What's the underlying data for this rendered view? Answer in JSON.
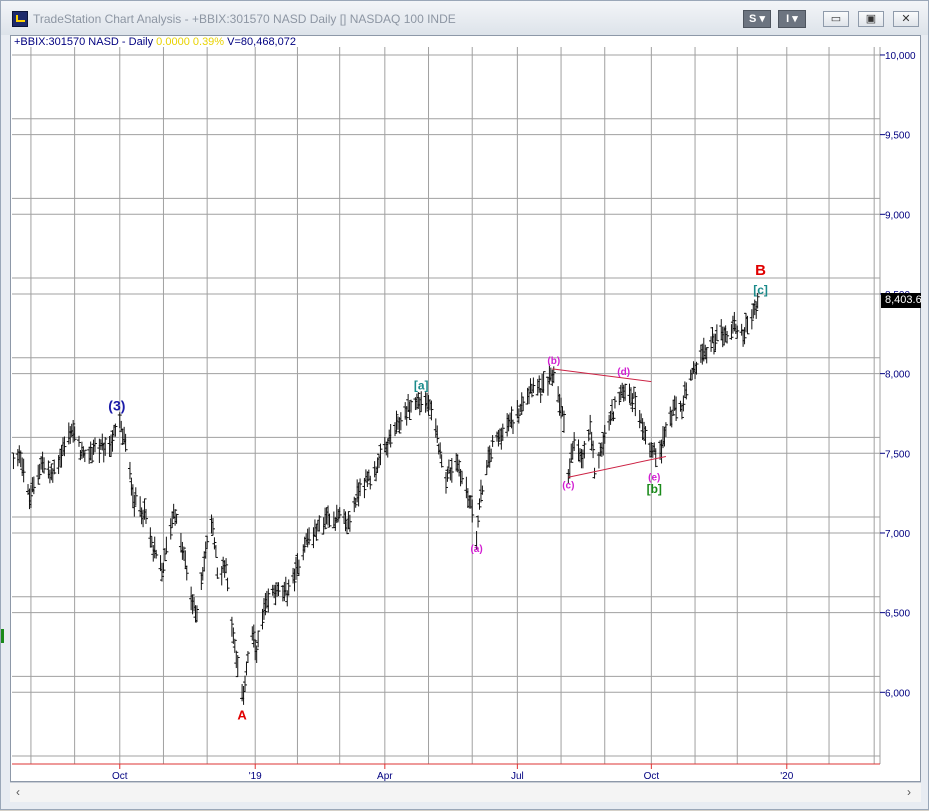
{
  "window": {
    "title": "TradeStation Chart Analysis - +BBIX:301570 NASD Daily [] NASDAQ 100 INDE",
    "buttons": {
      "s_label": "S",
      "i_label": "I",
      "s_menu_glyph": "▾",
      "i_menu_glyph": "▾"
    },
    "controls": {
      "minimize_glyph": "▭",
      "restore_glyph": "▣",
      "close_glyph": "✕"
    }
  },
  "status_line": {
    "symbol": "+BBIX:301570 NASD - Daily",
    "change": "0.0000",
    "pct_change": "0.39%",
    "volume": "V=80,468,072"
  },
  "last_price_label": "8,403.6",
  "scroll": {
    "left_glyph": "‹",
    "right_glyph": "›"
  },
  "colors": {
    "grid": "#a0a0a0",
    "bars": "#111111",
    "axis_text": "#000080",
    "wave_red": "#e00000",
    "wave_blue": "#1a1aa8",
    "wave_teal": "#1a8a8a",
    "wave_magenta": "#d21ed2",
    "wave_green": "#1a8a1a",
    "trendline": "#cc2244"
  },
  "chart_data": {
    "type": "ohlc",
    "ylim": [
      5550,
      10050
    ],
    "y_ticks": [
      6000,
      6500,
      7000,
      7500,
      8000,
      8500,
      9000,
      9500,
      10000
    ],
    "y_tick_labels": [
      "6,000",
      "6,500",
      "7,000",
      "7,500",
      "8,000",
      "8,500",
      "9,000",
      "9,500",
      "10,000"
    ],
    "xlim": [
      "2018-07-19",
      "2020-03-06"
    ],
    "x_ticks": [
      {
        "date": "2018-10-01",
        "label": "Oct"
      },
      {
        "date": "2019-01-02",
        "label": "'19"
      },
      {
        "date": "2019-04-01",
        "label": "Apr"
      },
      {
        "date": "2019-07-01",
        "label": "Jul"
      },
      {
        "date": "2019-10-01",
        "label": "Oct"
      },
      {
        "date": "2020-01-02",
        "label": "'20"
      }
    ],
    "x_grid_dates": [
      "2018-08-01",
      "2018-08-31",
      "2018-10-01",
      "2018-10-31",
      "2018-11-30",
      "2019-01-02",
      "2019-01-31",
      "2019-03-01",
      "2019-04-01",
      "2019-05-01",
      "2019-05-31",
      "2019-07-01",
      "2019-07-31",
      "2019-08-30",
      "2019-10-01",
      "2019-10-31",
      "2019-11-29",
      "2020-01-02",
      "2020-01-31",
      "2020-03-02"
    ],
    "price_path": [
      [
        "2018-07-20",
        7450
      ],
      [
        "2018-07-25",
        7500
      ],
      [
        "2018-07-31",
        7200
      ],
      [
        "2018-08-08",
        7450
      ],
      [
        "2018-08-15",
        7350
      ],
      [
        "2018-08-22",
        7500
      ],
      [
        "2018-08-29",
        7650
      ],
      [
        "2018-09-07",
        7450
      ],
      [
        "2018-09-14",
        7550
      ],
      [
        "2018-09-21",
        7500
      ],
      [
        "2018-10-01",
        7680
      ],
      [
        "2018-10-05",
        7550
      ],
      [
        "2018-10-11",
        7200
      ],
      [
        "2018-10-17",
        7150
      ],
      [
        "2018-10-24",
        6900
      ],
      [
        "2018-10-30",
        6750
      ],
      [
        "2018-11-07",
        7150
      ],
      [
        "2018-11-14",
        6850
      ],
      [
        "2018-11-20",
        6550
      ],
      [
        "2018-11-23",
        6500
      ],
      [
        "2018-11-30",
        6950
      ],
      [
        "2018-12-04",
        7050
      ],
      [
        "2018-12-07",
        6750
      ],
      [
        "2018-12-13",
        6800
      ],
      [
        "2018-12-18",
        6350
      ],
      [
        "2018-12-24",
        5950
      ],
      [
        "2018-12-27",
        6150
      ],
      [
        "2018-12-31",
        6350
      ],
      [
        "2019-01-03",
        6250
      ],
      [
        "2019-01-08",
        6500
      ],
      [
        "2019-01-15",
        6650
      ],
      [
        "2019-01-22",
        6600
      ],
      [
        "2019-01-30",
        6750
      ],
      [
        "2019-02-05",
        6950
      ],
      [
        "2019-02-12",
        7000
      ],
      [
        "2019-02-20",
        7100
      ],
      [
        "2019-02-28",
        7100
      ],
      [
        "2019-03-07",
        7050
      ],
      [
        "2019-03-15",
        7300
      ],
      [
        "2019-03-22",
        7350
      ],
      [
        "2019-03-29",
        7450
      ],
      [
        "2019-04-05",
        7600
      ],
      [
        "2019-04-12",
        7700
      ],
      [
        "2019-04-18",
        7800
      ],
      [
        "2019-04-26",
        7830
      ],
      [
        "2019-05-01",
        7800
      ],
      [
        "2019-05-07",
        7600
      ],
      [
        "2019-05-13",
        7350
      ],
      [
        "2019-05-20",
        7450
      ],
      [
        "2019-05-24",
        7350
      ],
      [
        "2019-05-31",
        7150
      ],
      [
        "2019-06-03",
        7000
      ],
      [
        "2019-06-07",
        7300
      ],
      [
        "2019-06-14",
        7550
      ],
      [
        "2019-06-21",
        7650
      ],
      [
        "2019-06-28",
        7700
      ],
      [
        "2019-07-05",
        7850
      ],
      [
        "2019-07-12",
        7950
      ],
      [
        "2019-07-18",
        7900
      ],
      [
        "2019-07-26",
        8000
      ],
      [
        "2019-08-02",
        7700
      ],
      [
        "2019-08-05",
        7400
      ],
      [
        "2019-08-09",
        7550
      ],
      [
        "2019-08-14",
        7450
      ],
      [
        "2019-08-20",
        7650
      ],
      [
        "2019-08-23",
        7400
      ],
      [
        "2019-08-30",
        7600
      ],
      [
        "2019-09-06",
        7800
      ],
      [
        "2019-09-12",
        7900
      ],
      [
        "2019-09-19",
        7850
      ],
      [
        "2019-09-24",
        7700
      ],
      [
        "2019-10-02",
        7500
      ],
      [
        "2019-10-08",
        7550
      ],
      [
        "2019-10-15",
        7750
      ],
      [
        "2019-10-22",
        7800
      ],
      [
        "2019-10-28",
        7950
      ],
      [
        "2019-11-01",
        8050
      ],
      [
        "2019-11-08",
        8150
      ],
      [
        "2019-11-15",
        8250
      ],
      [
        "2019-11-22",
        8250
      ],
      [
        "2019-11-27",
        8300
      ],
      [
        "2019-12-03",
        8250
      ],
      [
        "2019-12-10",
        8400
      ],
      [
        "2019-12-13",
        8420
      ]
    ],
    "wave_labels": [
      {
        "text": "(3)",
        "date": "2018-09-29",
        "price": 7770,
        "color": "#1a1aa8",
        "size": 14
      },
      {
        "text": "A",
        "date": "2018-12-24",
        "price": 5830,
        "color": "#e00000",
        "size": 13
      },
      {
        "text": "[a]",
        "date": "2019-04-26",
        "price": 7900,
        "color": "#1a8a8a",
        "size": 12
      },
      {
        "text": "(a)",
        "date": "2019-06-03",
        "price": 6880,
        "color": "#d21ed2",
        "size": 10
      },
      {
        "text": "(b)",
        "date": "2019-07-26",
        "price": 8060,
        "color": "#d21ed2",
        "size": 10
      },
      {
        "text": "(c)",
        "date": "2019-08-05",
        "price": 7280,
        "color": "#d21ed2",
        "size": 10
      },
      {
        "text": "(d)",
        "date": "2019-09-12",
        "price": 7990,
        "color": "#d21ed2",
        "size": 10
      },
      {
        "text": "(e)",
        "date": "2019-10-03",
        "price": 7330,
        "color": "#d21ed2",
        "size": 10
      },
      {
        "text": "[b]",
        "date": "2019-10-03",
        "price": 7250,
        "color": "#1a8a1a",
        "size": 12
      },
      {
        "text": "[c]",
        "date": "2019-12-15",
        "price": 8500,
        "color": "#1a8a8a",
        "size": 12
      },
      {
        "text": "B",
        "date": "2019-12-15",
        "price": 8620,
        "color": "#e00000",
        "size": 15
      }
    ],
    "trendlines": [
      {
        "from": [
          "2019-07-25",
          8030
        ],
        "to": [
          "2019-10-01",
          7950
        ]
      },
      {
        "from": [
          "2019-08-05",
          7350
        ],
        "to": [
          "2019-10-11",
          7480
        ]
      }
    ]
  }
}
